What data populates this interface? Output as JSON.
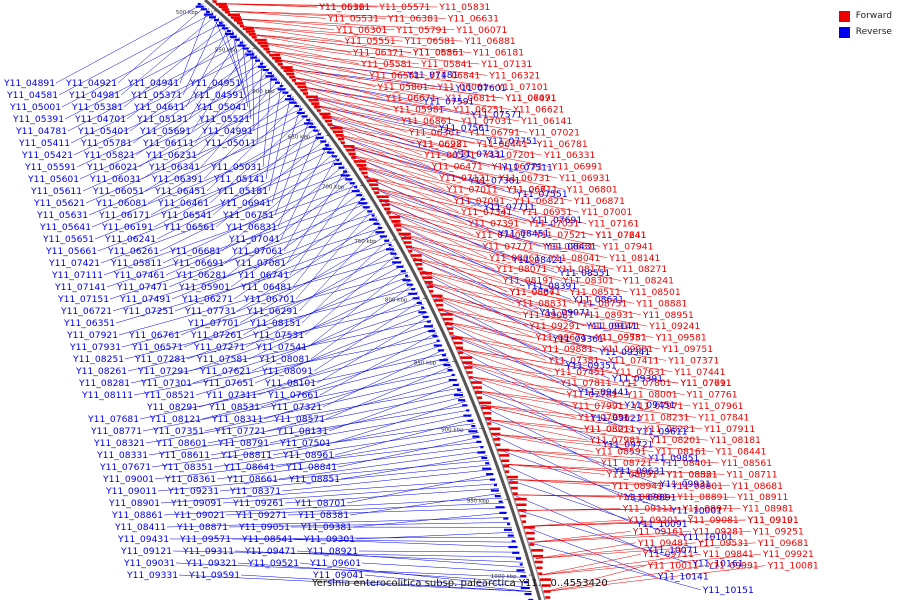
{
  "legend": {
    "forward_label": "Forward",
    "reverse_label": "Reverse",
    "forward_color": "#ee0000",
    "reverse_color": "#0000ee"
  },
  "caption": "Yersinia enterocolitica subsp. palearctica Y11... 0..4553420",
  "ticks": [
    "500 kbp",
    "550 kbp",
    "600 kbp",
    "650 kbp",
    "700 kbp",
    "750 kbp",
    "800 kbp",
    "850 kbp",
    "900 kbp",
    "950 kbp",
    "1000 kbp"
  ],
  "reverse_genes": [
    "Y11_04891",
    "Y11_04921",
    "Y11_04941",
    "Y11_04951",
    "Y11_04581",
    "Y11_04981",
    "Y11_05371",
    "Y11_04591",
    "Y11_05001",
    "Y11_05381",
    "Y11_04611",
    "Y11_05041",
    "Y11_05391",
    "Y11_04701",
    "Y11_05131",
    "Y11_05521",
    "Y11_04781",
    "Y11_05401",
    "Y11_05691",
    "Y11_04991",
    "Y11_05411",
    "Y11_05781",
    "Y11_06111",
    "Y11_05011",
    "Y11_05421",
    "Y11_05821",
    "Y11_06231",
    "Y11_05031",
    "Y11_05591",
    "Y11_06021",
    "Y11_06341",
    "Y11_05141",
    "Y11_05601",
    "Y11_06031",
    "Y11_06391",
    "Y11_05181",
    "Y11_05611",
    "Y11_06051",
    "Y11_06451",
    "Y11_06941",
    "Y11_05621",
    "Y11_06081",
    "Y11_06461",
    "Y11_06751",
    "Y11_05631",
    "Y11_06171",
    "Y11_06541",
    "Y11_06831",
    "Y11_05641",
    "Y11_06191",
    "Y11_06561",
    "Y11_07041",
    "Y11_05651",
    "Y11_06241",
    "Y11_06681",
    "Y11_07061",
    "Y11_05661",
    "Y11_06261",
    "Y11_06691",
    "Y11_07081",
    "Y11_07421",
    "Y11_05811",
    "Y11_06281",
    "Y11_06741",
    "Y11_07111",
    "Y11_07461",
    "Y11_05901",
    "Y11_06481",
    "Y11_07141",
    "Y11_07471",
    "Y11_06271",
    "Y11_06701",
    "Y11_07151",
    "Y11_07491",
    "Y11_07731",
    "Y11_06291",
    "Y11_06721",
    "Y11_07251",
    "Y11_07701",
    "Y11_08151",
    "Y11_06351",
    "Y11_06761",
    "Y11_07261",
    "Y11_07531",
    "Y11_07921",
    "Y11_06571",
    "Y11_07271",
    "Y11_07541",
    "Y11_07931",
    "Y11_07281",
    "Y11_07581",
    "Y11_08081",
    "Y11_08251",
    "Y11_07291",
    "Y11_07621",
    "Y11_08091",
    "Y11_08261",
    "Y11_07301",
    "Y11_07651",
    "Y11_08101",
    "Y11_08281",
    "Y11_08521",
    "Y11_07311",
    "Y11_07661",
    "Y11_08111",
    "Y11_08291",
    "Y11_08531",
    "Y11_07321",
    "Y11_07681",
    "Y11_08121",
    "Y11_08311",
    "Y11_08571",
    "Y11_08771",
    "Y11_07351",
    "Y11_07721",
    "Y11_08131",
    "Y11_08321",
    "Y11_08601",
    "Y11_08791",
    "Y11_07501",
    "Y11_08331",
    "Y11_08611",
    "Y11_08811",
    "Y11_08961",
    "Y11_07671",
    "Y11_08351",
    "Y11_08641",
    "Y11_08841",
    "Y11_09001",
    "Y11_08361",
    "Y11_08661",
    "Y11_08851",
    "Y11_09011",
    "Y11_09231",
    "Y11_08371",
    "Y11_08701",
    "Y11_08901",
    "Y11_09091",
    "Y11_09261",
    "Y11_08381",
    "Y11_08861",
    "Y11_09021",
    "Y11_09271",
    "Y11_09381",
    "Y11_08411",
    "Y11_08871",
    "Y11_09051",
    "Y11_09301",
    "Y11_09431",
    "Y11_09571",
    "Y11_08541",
    "Y11_08921",
    "Y11_09121",
    "Y11_09311",
    "Y11_09471",
    "Y11_09601",
    "Y11_09031",
    "Y11_09321",
    "Y11_09521",
    "Y11_09041",
    "Y11_09331",
    "Y11_09591"
  ],
  "forward_genes": [
    "Y11_05361",
    "Y11_05571",
    "Y11_05831",
    "Y11_06121",
    "Y11_06381",
    "Y11_06631",
    "Y11_05531",
    "Y11_05791",
    "Y11_06071",
    "Y11_06301",
    "Y11_06581",
    "Y11_06881",
    "Y11_05551",
    "Y11_05561",
    "Y11_06181",
    "Y11_06371",
    "Y11_06851",
    "Y11_07131",
    "Y11_05581",
    "Y11_05841",
    "Y11_06321",
    "Y11_06551",
    "Y11_06841",
    "Y11_07101",
    "Y11_05801",
    "Y11_06061",
    "Y11_06491",
    "Y11_06671",
    "Y11_06811",
    "Y11_07071",
    "Y11_05981",
    "Y11_06251",
    "Y11_06621",
    "Y11_06861",
    "Y11_07031",
    "Y11_06141",
    "Y11_06361",
    "Y11_06791",
    "Y11_07021",
    "Y11_06221",
    "Y11_06441",
    "Y11_06781",
    "Y11_06981",
    "Y11_07201",
    "Y11_06331",
    "Y11_06591",
    "Y11_06771",
    "Y11_06991",
    "Y11_06471",
    "Y11_06731",
    "Y11_06931",
    "Y11_07121",
    "Y11_06611",
    "Y11_06801",
    "Y11_07011",
    "Y11_06711",
    "Y11_06871",
    "Y11_07091",
    "Y11_06821",
    "Y11_07001",
    "Y11_07341",
    "Y11_06951",
    "Y11_07161",
    "Y11_07391",
    "Y11_07051",
    "Y11_07241",
    "Y11_07401",
    "Y11_07521",
    "Y11_07641",
    "Y11_07771",
    "Y11_07831",
    "Y11_07941",
    "Y11_08061",
    "Y11_08041",
    "Y11_08141",
    "Y11_08071",
    "Y11_08171",
    "Y11_08271",
    "Y11_08191",
    "Y11_08301",
    "Y11_08241",
    "Y11_08341",
    "Y11_08511",
    "Y11_08501",
    "Y11_08671",
    "Y11_08751",
    "Y11_08881",
    "Y11_08831",
    "Y11_08931",
    "Y11_08951",
    "Y11_09061",
    "Y11_09171",
    "Y11_09241",
    "Y11_09291",
    "Y11_09551",
    "Y11_09581",
    "Y11_09671",
    "Y11_09781",
    "Y11_09751",
    "Y11_09881",
    "Y11_09981",
    "Y11_07371",
    "Y11_07381",
    "Y11_07411",
    "Y11_07441",
    "Y11_07451",
    "Y11_07631",
    "Y11_07611",
    "Y11_07811",
    "Y11_07801",
    "Y11_07791",
    "Y11_07781",
    "Y11_08001",
    "Y11_07761",
    "Y11_07991",
    "Y11_07971",
    "Y11_07961",
    "Y11_07951",
    "Y11_08231",
    "Y11_07841",
    "Y11_08011",
    "Y11_08221",
    "Y11_07911",
    "Y11_08211",
    "Y11_08201",
    "Y11_08181",
    "Y11_07981",
    "Y11_08161",
    "Y11_08441",
    "Y11_08591",
    "Y11_08401",
    "Y11_08561",
    "Y11_08721",
    "Y11_08581",
    "Y11_08711",
    "Y11_08691",
    "Y11_08821",
    "Y11_08681",
    "Y11_08941",
    "Y11_08801",
    "Y11_08911",
    "Y11_08781",
    "Y11_08891",
    "Y11_08981",
    "Y11_09111",
    "Y11_08971",
    "Y11_09101",
    "Y11_09201",
    "Y11_09081",
    "Y11_09191",
    "Y11_09161",
    "Y11_09281",
    "Y11_09251",
    "Y11_09481",
    "Y11_09531",
    "Y11_09681",
    "Y11_09711",
    "Y11_09841",
    "Y11_09921",
    "Y11_10011",
    "Y11_09991",
    "Y11_10081"
  ],
  "blue_right_genes": [
    "Y11_07481",
    "Y11_07601",
    "Y11_07591",
    "Y11_07571",
    "Y11_07561",
    "Y11_07751",
    "Y11_07331",
    "Y11_07511",
    "Y11_07361",
    "Y11_07551",
    "Y11_07711",
    "Y11_07691",
    "Y11_08451",
    "Y11_08431",
    "Y11_08421",
    "Y11_08551",
    "Y11_08391",
    "Y11_08631",
    "Y11_09071",
    "Y11_09141",
    "Y11_09361",
    "Y11_09341",
    "Y11_09351",
    "Y11_09391",
    "Y11_09441",
    "Y11_09451",
    "Y11_09621",
    "Y11_09611",
    "Y11_09721",
    "Y11_09851",
    "Y11_09631",
    "Y11_09931",
    "Y11_09891",
    "Y11_10001",
    "Y11_10091",
    "Y11_10101",
    "Y11_10071",
    "Y11_10161",
    "Y11_10141",
    "Y11_10151"
  ]
}
